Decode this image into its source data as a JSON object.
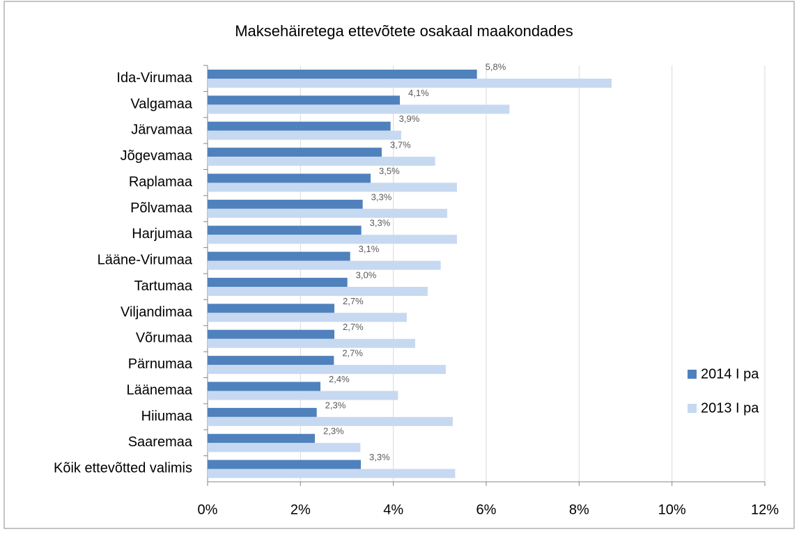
{
  "chart_data": {
    "type": "barh",
    "title": "Maksehäiretega ettevõtete osakaal maakondades",
    "categories": [
      "Ida-Virumaa",
      "Valgamaa",
      "Järvamaa",
      "Jõgevamaa",
      "Raplamaa",
      "Põlvamaa",
      "Harjumaa",
      "Lääne-Virumaa",
      "Tartumaa",
      "Viljandimaa",
      "Võrumaa",
      "Pärnumaa",
      "Läänemaa",
      "Hiiumaa",
      "Saaremaa",
      "Kõik ettevõtted valimis"
    ],
    "series": [
      {
        "name": "2014 I pa",
        "color": "#4f81bd",
        "values": [
          5.8,
          4.14,
          3.94,
          3.75,
          3.51,
          3.34,
          3.31,
          3.07,
          3.01,
          2.73,
          2.73,
          2.72,
          2.43,
          2.35,
          2.31,
          3.3
        ],
        "value_labels": [
          "5,8%",
          "4,1%",
          "3,9%",
          "3,7%",
          "3,5%",
          "3,3%",
          "3,3%",
          "3,1%",
          "3,0%",
          "2,7%",
          "2,7%",
          "2,7%",
          "2,4%",
          "2,3%",
          "2,3%",
          "3,3%"
        ]
      },
      {
        "name": "2013 I pa",
        "color": "#c6d9f1",
        "values": [
          8.7,
          6.5,
          4.17,
          4.9,
          5.37,
          5.16,
          5.37,
          5.02,
          4.74,
          4.29,
          4.47,
          5.13,
          4.1,
          5.28,
          3.29,
          5.33
        ]
      }
    ],
    "xlim": [
      0,
      12
    ],
    "xticks": [
      {
        "value": 0,
        "label": "0%"
      },
      {
        "value": 2,
        "label": "2%"
      },
      {
        "value": 4,
        "label": "4%"
      },
      {
        "value": 6,
        "label": "6%"
      },
      {
        "value": 8,
        "label": "8%"
      },
      {
        "value": 10,
        "label": "10%"
      },
      {
        "value": 12,
        "label": "12%"
      }
    ],
    "grid": true,
    "legend": "right"
  }
}
